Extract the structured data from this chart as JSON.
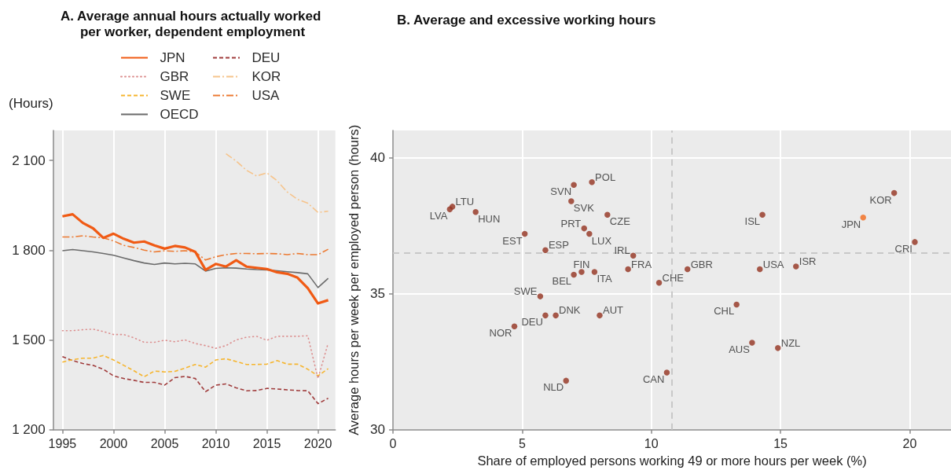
{
  "chart_data": [
    {
      "type": "line",
      "title": "A. Average annual hours actually worked per worker, dependent employment",
      "ylabel": "(Hours)",
      "xlim": [
        1994.1,
        2021.7
      ],
      "xticks": [
        1995,
        2000,
        2005,
        2010,
        2015,
        2020
      ],
      "ylim": [
        1200,
        2200
      ],
      "yticks": [
        {
          "value": 1200,
          "label": "1 200"
        },
        {
          "value": 1500,
          "label": "1 500"
        },
        {
          "value": 1800,
          "label": "1 800"
        },
        {
          "value": 2100,
          "label": "2 100"
        }
      ],
      "grid": "x",
      "legend": "top",
      "marker": "none",
      "x": [
        1995,
        1996,
        1997,
        1998,
        1999,
        2000,
        2001,
        2002,
        2003,
        2004,
        2005,
        2006,
        2007,
        2008,
        2009,
        2010,
        2011,
        2012,
        2013,
        2014,
        2015,
        2016,
        2017,
        2018,
        2019,
        2020,
        2021
      ],
      "series": [
        {
          "name": "JPN",
          "color": "#f05a14",
          "line_style": "solid",
          "values": [
            1913,
            1920,
            1891,
            1873,
            1841,
            1855,
            1838,
            1825,
            1829,
            1816,
            1805,
            1814,
            1809,
            1794,
            1734,
            1754,
            1745,
            1766,
            1745,
            1741,
            1737,
            1726,
            1721,
            1708,
            1673,
            1622,
            1633
          ]
        },
        {
          "name": "GBR",
          "color": "#dc8f8f",
          "line_style": "dotted",
          "values": [
            1531,
            1531,
            1534,
            1536,
            1528,
            1518,
            1518,
            1507,
            1492,
            1492,
            1499,
            1494,
            1500,
            1488,
            1481,
            1472,
            1481,
            1500,
            1509,
            1512,
            1499,
            1512,
            1512,
            1512,
            1514,
            1371,
            1490
          ]
        },
        {
          "name": "SWE",
          "color": "#f6b52e",
          "line_style": "dashed",
          "values": [
            1426,
            1434,
            1439,
            1439,
            1448,
            1433,
            1415,
            1397,
            1377,
            1396,
            1393,
            1395,
            1406,
            1418,
            1409,
            1433,
            1437,
            1428,
            1418,
            1418,
            1419,
            1431,
            1419,
            1419,
            1402,
            1380,
            1404
          ]
        },
        {
          "name": "OECD",
          "color": "#6b6b6b",
          "line_style": "solid",
          "values": [
            1798,
            1802,
            1798,
            1794,
            1789,
            1783,
            1774,
            1765,
            1757,
            1752,
            1757,
            1754,
            1756,
            1754,
            1730,
            1739,
            1741,
            1740,
            1737,
            1735,
            1734,
            1731,
            1728,
            1725,
            1721,
            1675,
            1706
          ]
        },
        {
          "name": "DEU",
          "color": "#a03c3c",
          "line_style": "dashed",
          "values": [
            1444,
            1431,
            1421,
            1415,
            1402,
            1380,
            1371,
            1365,
            1358,
            1358,
            1349,
            1374,
            1378,
            1371,
            1327,
            1349,
            1353,
            1340,
            1330,
            1331,
            1338,
            1336,
            1333,
            1331,
            1330,
            1287,
            1305
          ]
        },
        {
          "name": "KOR",
          "color": "#f6c48c",
          "line_style": "dashdot",
          "values": [
            null,
            null,
            null,
            null,
            null,
            null,
            null,
            null,
            null,
            null,
            null,
            null,
            null,
            null,
            null,
            null,
            2122,
            2098,
            2067,
            2048,
            2058,
            2032,
            1994,
            1970,
            1957,
            1926,
            1930
          ]
        },
        {
          "name": "USA",
          "color": "#ec7a32",
          "line_style": "dashdot",
          "values": [
            1844,
            1844,
            1848,
            1844,
            1841,
            1831,
            1816,
            1809,
            1800,
            1794,
            1798,
            1796,
            1798,
            1794,
            1767,
            1778,
            1785,
            1789,
            1789,
            1788,
            1789,
            1788,
            1785,
            1789,
            1785,
            1785,
            1803
          ]
        }
      ]
    },
    {
      "type": "scatter",
      "title": "B. Average and excessive working hours",
      "xlabel": "Share of employed persons working 49 or more hours per week (%)",
      "ylabel": "Average hours per week per employed person (hours)",
      "xlim": [
        0,
        21.6
      ],
      "xticks": [
        0,
        5,
        10,
        15,
        20
      ],
      "ylim": [
        30,
        41
      ],
      "yticks": [
        30,
        35,
        40
      ],
      "grid": true,
      "marker": "circle",
      "series": [
        {
          "x": [
            2.2,
            2.3,
            3.2,
            7.7,
            7.0,
            6.9,
            8.3,
            7.4,
            7.6,
            5.1,
            5.9,
            9.3,
            9.1,
            7.3,
            7.0,
            7.8,
            10.3,
            5.7,
            5.9,
            6.3,
            8.0,
            4.7,
            6.7,
            10.6,
            11.4,
            14.2,
            15.6,
            14.3,
            13.3,
            13.9,
            14.9,
            18.2,
            19.4,
            20.2
          ],
          "values": [
            38.1,
            38.2,
            38.0,
            39.1,
            39.0,
            38.4,
            37.9,
            37.4,
            37.2,
            37.2,
            36.6,
            36.4,
            35.9,
            35.8,
            35.7,
            35.8,
            35.4,
            34.9,
            34.2,
            34.2,
            34.2,
            33.8,
            31.8,
            32.1,
            35.9,
            35.9,
            36.0,
            37.9,
            34.6,
            33.2,
            33.0,
            37.8,
            38.7,
            36.9
          ],
          "colors": [
            "#94321f",
            "#94321f",
            "#94321f",
            "#94321f",
            "#94321f",
            "#94321f",
            "#94321f",
            "#94321f",
            "#94321f",
            "#94321f",
            "#94321f",
            "#94321f",
            "#94321f",
            "#94321f",
            "#94321f",
            "#94321f",
            "#94321f",
            "#94321f",
            "#94321f",
            "#94321f",
            "#94321f",
            "#94321f",
            "#94321f",
            "#94321f",
            "#94321f",
            "#94321f",
            "#94321f",
            "#94321f",
            "#94321f",
            "#94321f",
            "#94321f",
            "#f26a1b",
            "#94321f",
            "#94321f"
          ]
        }
      ],
      "ref_lines": [
        {
          "axis": "x",
          "value": 10.8,
          "color": "#c8c8c8",
          "line_style": "dashed"
        },
        {
          "axis": "y",
          "value": 36.5,
          "color": "#c8c8c8",
          "line_style": "dashed"
        }
      ],
      "annotations": [
        {
          "text": "LVA",
          "x": 2.2,
          "y": 38.1
        },
        {
          "text": "LTU",
          "x": 2.3,
          "y": 38.2
        },
        {
          "text": "HUN",
          "x": 3.2,
          "y": 38.0
        },
        {
          "text": "POL",
          "x": 7.7,
          "y": 39.1
        },
        {
          "text": "SVN",
          "x": 7.0,
          "y": 39.0
        },
        {
          "text": "SVK",
          "x": 6.9,
          "y": 38.4
        },
        {
          "text": "CZE",
          "x": 8.3,
          "y": 37.9
        },
        {
          "text": "PRT",
          "x": 7.4,
          "y": 37.4
        },
        {
          "text": "LUX",
          "x": 7.6,
          "y": 37.2
        },
        {
          "text": "EST",
          "x": 5.1,
          "y": 37.2
        },
        {
          "text": "ESP",
          "x": 5.9,
          "y": 36.6
        },
        {
          "text": "IRL",
          "x": 9.3,
          "y": 36.4
        },
        {
          "text": "FRA",
          "x": 9.1,
          "y": 35.9
        },
        {
          "text": "FIN",
          "x": 7.3,
          "y": 35.8
        },
        {
          "text": "BEL",
          "x": 7.0,
          "y": 35.7
        },
        {
          "text": "ITA",
          "x": 7.8,
          "y": 35.8
        },
        {
          "text": "CHE",
          "x": 10.3,
          "y": 35.4
        },
        {
          "text": "SWE",
          "x": 5.7,
          "y": 34.9
        },
        {
          "text": "DEU",
          "x": 5.9,
          "y": 34.2
        },
        {
          "text": "DNK",
          "x": 6.3,
          "y": 34.2
        },
        {
          "text": "AUT",
          "x": 8.0,
          "y": 34.2
        },
        {
          "text": "NOR",
          "x": 4.7,
          "y": 33.8
        },
        {
          "text": "NLD",
          "x": 6.7,
          "y": 31.8
        },
        {
          "text": "CAN",
          "x": 10.6,
          "y": 32.1
        },
        {
          "text": "GBR",
          "x": 11.4,
          "y": 35.9
        },
        {
          "text": "USA",
          "x": 14.2,
          "y": 35.9
        },
        {
          "text": "ISR",
          "x": 15.6,
          "y": 36.0
        },
        {
          "text": "ISL",
          "x": 14.3,
          "y": 37.9
        },
        {
          "text": "CHL",
          "x": 13.3,
          "y": 34.6
        },
        {
          "text": "AUS",
          "x": 13.9,
          "y": 33.2
        },
        {
          "text": "NZL",
          "x": 14.9,
          "y": 33.0
        },
        {
          "text": "JPN",
          "x": 18.2,
          "y": 37.8
        },
        {
          "text": "KOR",
          "x": 19.4,
          "y": 38.7
        },
        {
          "text": "CRI",
          "x": 20.2,
          "y": 36.9
        }
      ]
    }
  ]
}
